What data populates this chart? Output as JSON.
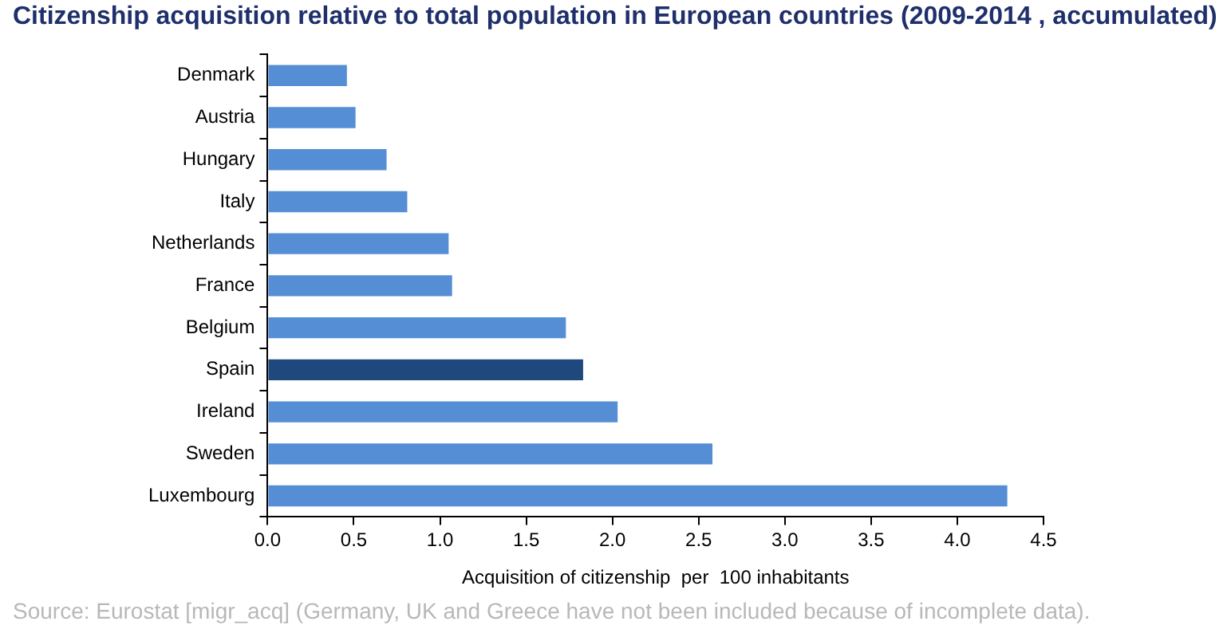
{
  "chart_data": {
    "type": "bar",
    "orientation": "horizontal",
    "title": "Citizenship acquisition relative to total population in European countries (2009-2014 , accumulated)",
    "categories": [
      "Denmark",
      "Austria",
      "Hungary",
      "Italy",
      "Netherlands",
      "France",
      "Belgium",
      "Spain",
      "Ireland",
      "Sweden",
      "Luxembourg"
    ],
    "values": [
      0.46,
      0.51,
      0.69,
      0.81,
      1.05,
      1.07,
      1.73,
      1.83,
      2.03,
      2.58,
      4.29
    ],
    "colors": [
      "#558ed5",
      "#558ed5",
      "#558ed5",
      "#558ed5",
      "#558ed5",
      "#558ed5",
      "#558ed5",
      "#1f497d",
      "#558ed5",
      "#558ed5",
      "#558ed5"
    ],
    "xlabel": "Acquisition of citizenship  per  100 inhabitants",
    "xlim": [
      0,
      4.5
    ],
    "xticks": [
      {
        "value": 0,
        "label": "0.0"
      },
      {
        "value": 0.5,
        "label": "0.5"
      },
      {
        "value": 1,
        "label": "1.0"
      },
      {
        "value": 1.5,
        "label": "1.5"
      },
      {
        "value": 2,
        "label": "2.0"
      },
      {
        "value": 2.5,
        "label": "2.5"
      },
      {
        "value": 3,
        "label": "3.0"
      },
      {
        "value": 3.5,
        "label": "3.5"
      },
      {
        "value": 4,
        "label": "4.0"
      },
      {
        "value": 4.5,
        "label": "4.5"
      }
    ],
    "grid": false,
    "legend": false,
    "annotations": [
      "Source: Eurostat [migr_acq] (Germany, UK and Greece have not been included because of incomplete data)."
    ]
  }
}
